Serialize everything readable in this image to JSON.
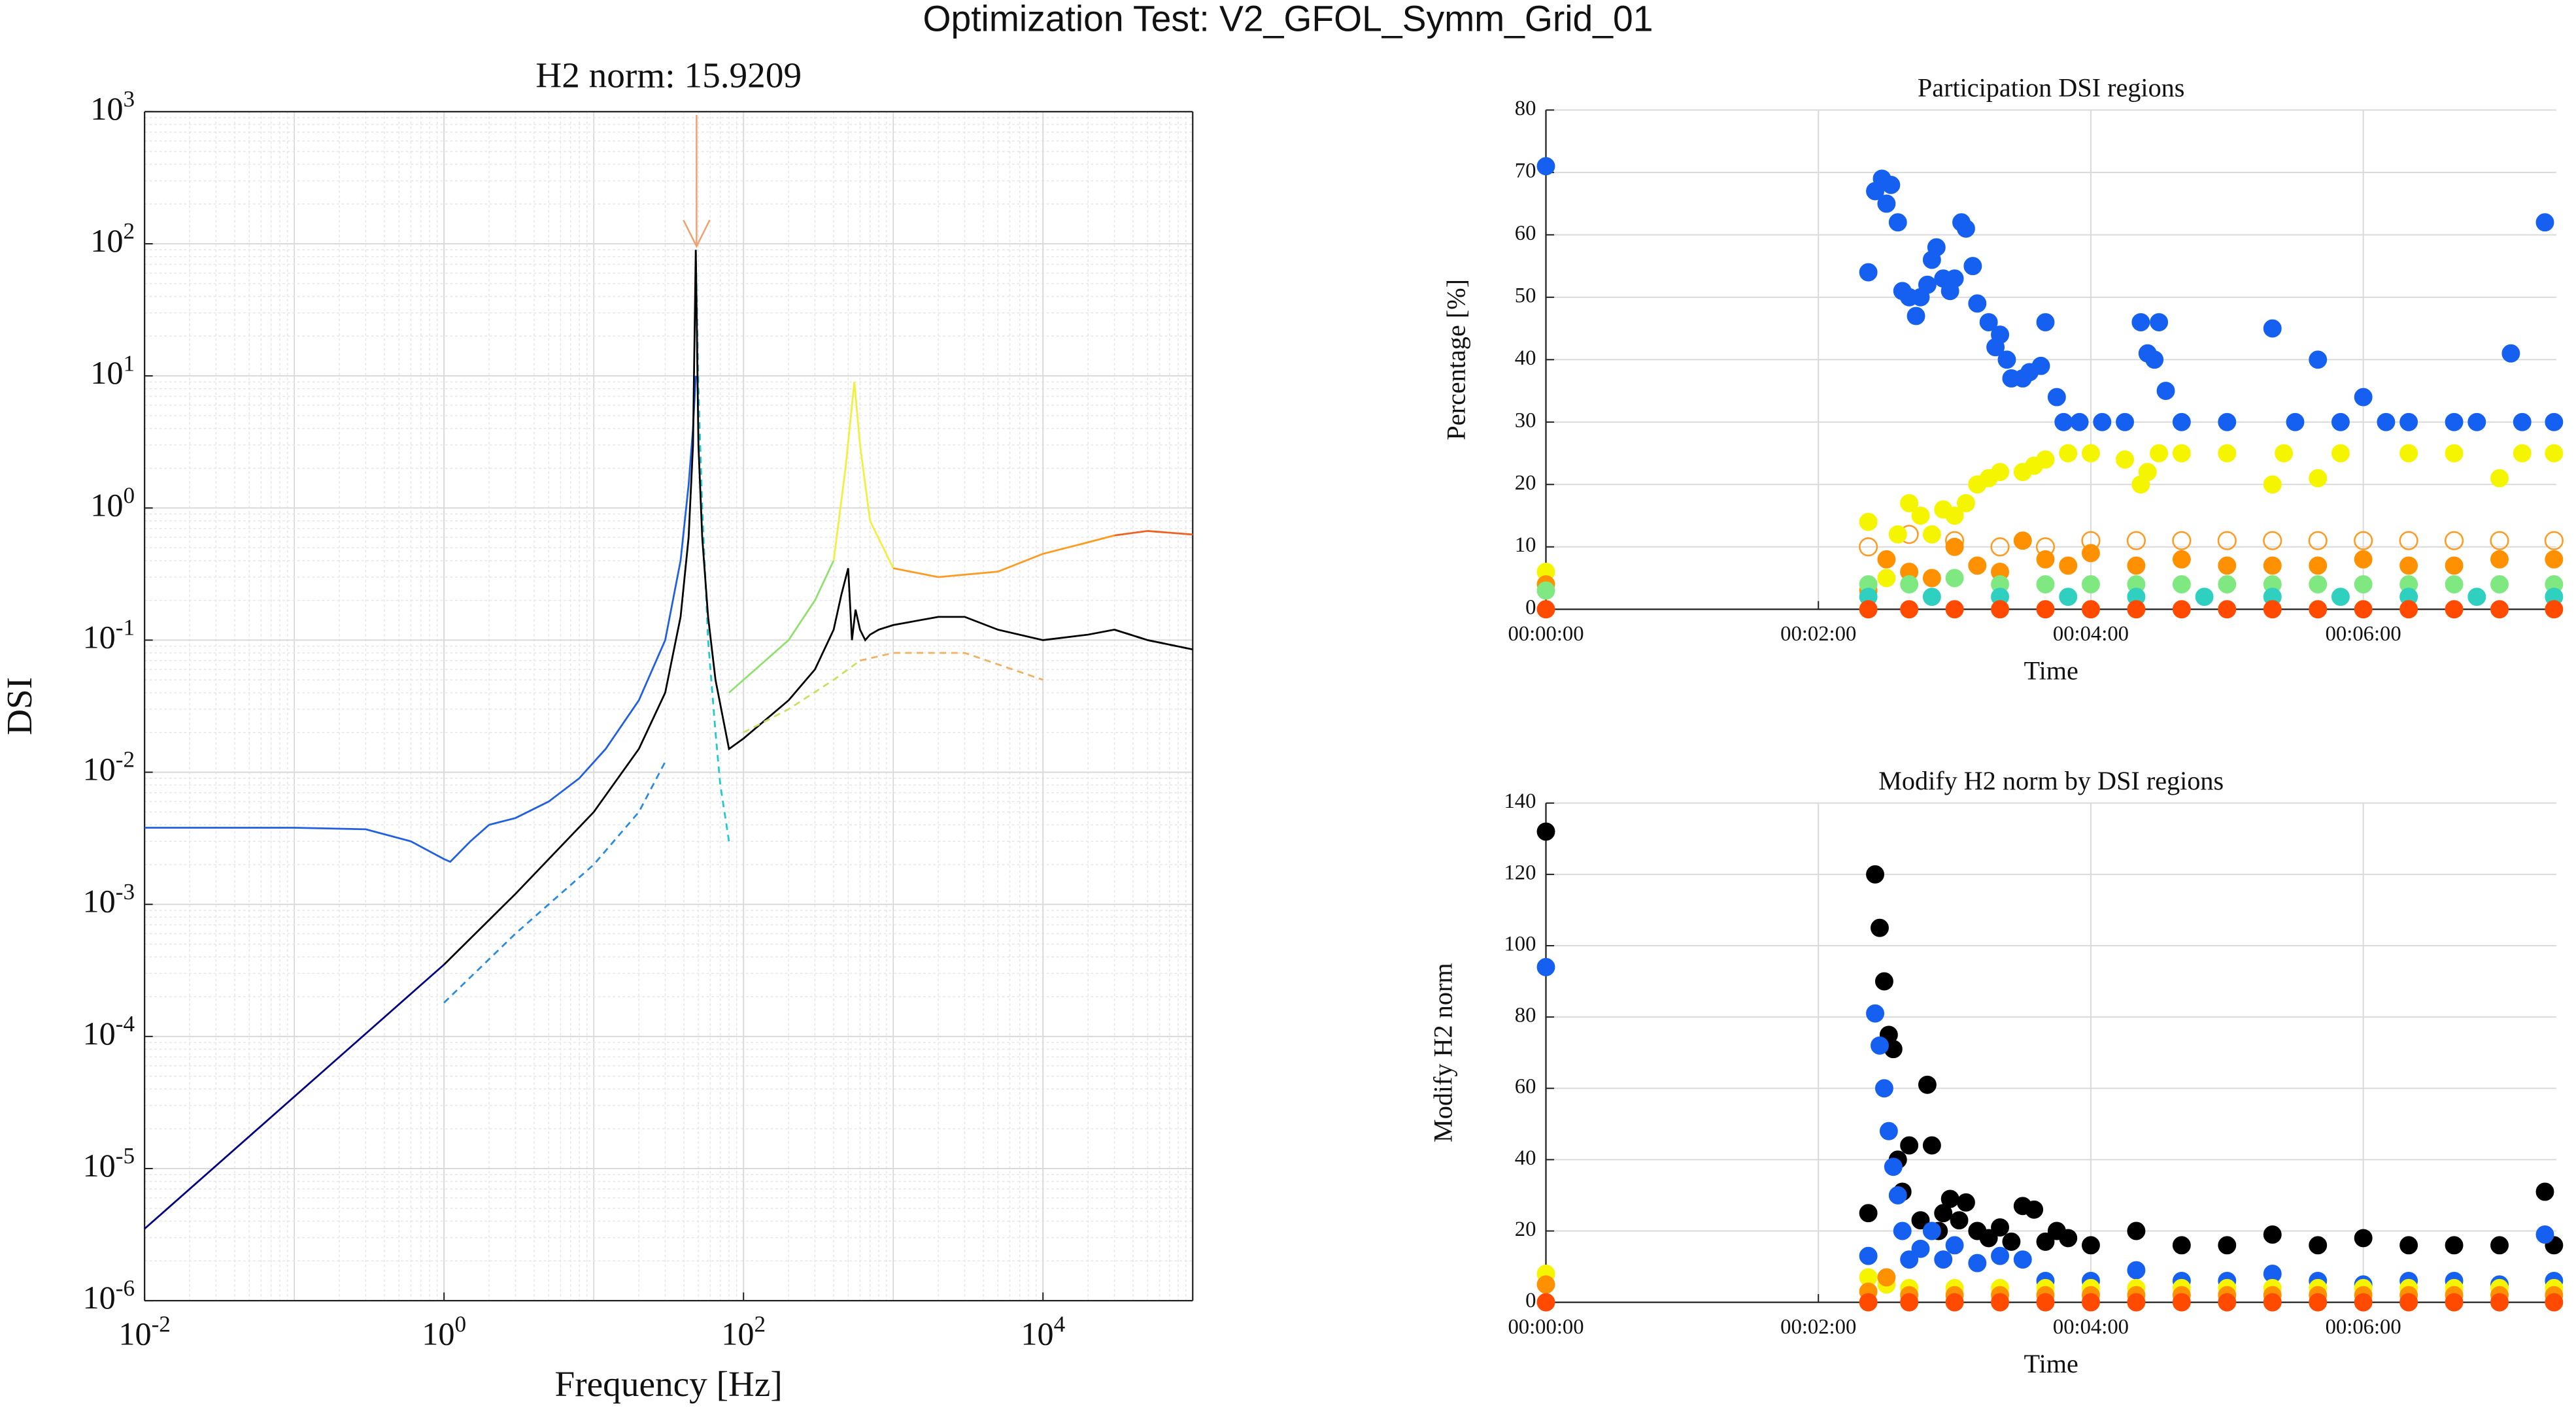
{
  "title": "Optimization Test: V2_GFOL_Symm_Grid_01",
  "chart_data": [
    {
      "type": "line",
      "title": "H2 norm: 15.9209",
      "xlabel": "Frequency [Hz]",
      "ylabel": "DSI",
      "xscale": "log",
      "yscale": "log",
      "grid": true,
      "minor_grid": true,
      "xlim": [
        0.01,
        100000
      ],
      "ylim": [
        1e-06,
        1000
      ],
      "xticks": [
        {
          "value": 0.01,
          "label": "10^-2"
        },
        {
          "value": 1,
          "label": "10^0"
        },
        {
          "value": 100,
          "label": "10^2"
        },
        {
          "value": 10000,
          "label": "10^4"
        }
      ],
      "yticks": [
        {
          "value": 1e-06,
          "label": "10^-6"
        },
        {
          "value": 1e-05,
          "label": "10^-5"
        },
        {
          "value": 0.0001,
          "label": "10^-4"
        },
        {
          "value": 0.001,
          "label": "10^-3"
        },
        {
          "value": 0.01,
          "label": "10^-2"
        },
        {
          "value": 0.1,
          "label": "10^-1"
        },
        {
          "value": 1,
          "label": "10^0"
        },
        {
          "value": 10,
          "label": "10^1"
        },
        {
          "value": 100,
          "label": "10^2"
        },
        {
          "value": 1000,
          "label": "10^3"
        }
      ],
      "series": [
        {
          "color": "#000080",
          "dashed": false,
          "x": [
            0.01,
            1
          ],
          "values": [
            3.5e-06,
            0.00035
          ]
        },
        {
          "color": "#2060e0",
          "dashed": false,
          "x": [
            0.01,
            0.1,
            0.3,
            0.6,
            1,
            1.1,
            1.5,
            2,
            3,
            5,
            8,
            12,
            20,
            30,
            38,
            43,
            46,
            48
          ],
          "values": [
            0.0038,
            0.0038,
            0.0037,
            0.003,
            0.0022,
            0.0021,
            0.003,
            0.004,
            0.0045,
            0.006,
            0.009,
            0.015,
            0.035,
            0.1,
            0.4,
            1.5,
            4,
            10
          ]
        },
        {
          "color": "#2a8ae0",
          "dashed": true,
          "x": [
            1,
            3,
            10,
            20,
            30
          ],
          "values": [
            0.00018,
            0.0006,
            0.002,
            0.005,
            0.012
          ]
        },
        {
          "color": "#20c8d0",
          "dashed": true,
          "x": [
            48,
            50,
            53,
            58,
            65,
            70,
            80
          ],
          "values": [
            90,
            8,
            1,
            0.1,
            0.02,
            0.008,
            0.003
          ]
        },
        {
          "color": "#000000",
          "dashed": false,
          "x": [
            1,
            3,
            10,
            20,
            30,
            38,
            43,
            46,
            48,
            50,
            53,
            58,
            65,
            80,
            100,
            200,
            300,
            400,
            450,
            500,
            530,
            560,
            600,
            650,
            700,
            800,
            1000,
            2000,
            3000,
            5000,
            10000,
            20000,
            30000,
            50000,
            100000
          ],
          "values": [
            0.00035,
            0.0012,
            0.005,
            0.015,
            0.04,
            0.15,
            0.6,
            3,
            90,
            3,
            0.6,
            0.15,
            0.05,
            0.015,
            0.018,
            0.035,
            0.06,
            0.12,
            0.22,
            0.35,
            0.1,
            0.17,
            0.12,
            0.1,
            0.11,
            0.12,
            0.13,
            0.15,
            0.15,
            0.12,
            0.1,
            0.11,
            0.12,
            0.1,
            0.085
          ]
        },
        {
          "color": "#90e070",
          "dashed": false,
          "x": [
            80,
            100,
            200,
            300,
            400
          ],
          "values": [
            0.04,
            0.05,
            0.1,
            0.2,
            0.4
          ]
        },
        {
          "color": "#f0f040",
          "dashed": false,
          "x": [
            400,
            480,
            550,
            600,
            700,
            1000
          ],
          "values": [
            0.4,
            2,
            9,
            3,
            0.8,
            0.35
          ]
        },
        {
          "color": "#ff9a20",
          "dashed": false,
          "x": [
            1000,
            2000,
            5000,
            10000,
            20000,
            30000
          ],
          "values": [
            0.35,
            0.3,
            0.33,
            0.45,
            0.55,
            0.62
          ]
        },
        {
          "color": "#f06020",
          "dashed": false,
          "x": [
            30000,
            50000,
            100000
          ],
          "values": [
            0.62,
            0.67,
            0.63
          ]
        },
        {
          "color": "#c8e060",
          "dashed": true,
          "x": [
            100,
            200,
            400,
            600
          ],
          "values": [
            0.02,
            0.03,
            0.05,
            0.07
          ]
        },
        {
          "color": "#f0b060",
          "dashed": true,
          "x": [
            600,
            1000,
            3000,
            10000
          ],
          "values": [
            0.07,
            0.08,
            0.08,
            0.05
          ]
        },
        {
          "color": "#000000",
          "dashed": true,
          "x": [
            30000,
            50000,
            100000
          ],
          "values": [
            0.12,
            0.1,
            0.085
          ]
        }
      ]
    },
    {
      "type": "scatter",
      "title": "Participation DSI regions",
      "xlabel": "Time",
      "ylabel": "Percentage [%]",
      "grid": true,
      "xlim": [
        0,
        445
      ],
      "ylim": [
        0,
        80
      ],
      "xticks": [
        {
          "value": 0,
          "label": "00:00:00"
        },
        {
          "value": 120,
          "label": "00:02:00"
        },
        {
          "value": 240,
          "label": "00:04:00"
        },
        {
          "value": 360,
          "label": "00:06:00"
        }
      ],
      "yticks": [
        0,
        10,
        20,
        30,
        40,
        50,
        60,
        70,
        80
      ],
      "series": [
        {
          "color": "#ff9a20",
          "filled": false,
          "x": [
            142,
            160,
            180,
            200,
            220,
            240,
            260,
            280,
            300,
            320,
            340,
            360,
            380,
            400,
            420,
            444
          ],
          "values": [
            10,
            12,
            11,
            10,
            10,
            11,
            11,
            11,
            11,
            11,
            11,
            11,
            11,
            11,
            11,
            11
          ]
        },
        {
          "color": "#1560f0",
          "filled": true,
          "x": [
            0,
            142,
            145,
            148,
            150,
            152,
            155,
            157,
            160,
            163,
            165,
            168,
            170,
            172,
            175,
            178,
            180,
            183,
            185,
            188,
            190,
            195,
            198,
            200,
            203,
            205,
            210,
            213,
            218,
            220,
            225,
            228,
            235,
            245,
            255,
            262,
            265,
            268,
            270,
            273,
            280,
            300,
            320,
            330,
            340,
            350,
            360,
            370,
            380,
            400,
            410,
            425,
            430,
            440,
            444
          ],
          "values": [
            71,
            54,
            67,
            69,
            65,
            68,
            62,
            51,
            50,
            47,
            50,
            52,
            56,
            58,
            53,
            51,
            53,
            62,
            61,
            55,
            49,
            46,
            42,
            44,
            40,
            37,
            37,
            38,
            39,
            46,
            34,
            30,
            30,
            30,
            30,
            46,
            41,
            40,
            46,
            35,
            30,
            30,
            45,
            30,
            40,
            30,
            34,
            30,
            30,
            30,
            30,
            41,
            30,
            62,
            30
          ]
        },
        {
          "color": "#f5f500",
          "filled": true,
          "x": [
            0,
            142,
            150,
            155,
            160,
            165,
            170,
            175,
            180,
            185,
            190,
            195,
            200,
            210,
            215,
            220,
            230,
            240,
            255,
            262,
            265,
            270,
            280,
            300,
            320,
            325,
            340,
            350,
            380,
            400,
            420,
            430,
            444
          ],
          "values": [
            6,
            14,
            5,
            12,
            17,
            15,
            12,
            16,
            15,
            17,
            20,
            21,
            22,
            22,
            23,
            24,
            25,
            25,
            24,
            20,
            22,
            25,
            25,
            25,
            20,
            25,
            21,
            25,
            25,
            25,
            21,
            25,
            25
          ]
        },
        {
          "color": "#ff9000",
          "filled": true,
          "x": [
            0,
            142,
            150,
            160,
            170,
            180,
            190,
            200,
            210,
            220,
            230,
            240,
            260,
            280,
            300,
            320,
            340,
            360,
            380,
            400,
            420,
            444
          ],
          "values": [
            4,
            3,
            8,
            6,
            5,
            10,
            7,
            6,
            11,
            8,
            7,
            9,
            7,
            8,
            7,
            7,
            7,
            8,
            7,
            7,
            8,
            8
          ]
        },
        {
          "color": "#80e880",
          "filled": true,
          "x": [
            0,
            142,
            160,
            180,
            200,
            220,
            240,
            260,
            280,
            300,
            320,
            340,
            360,
            380,
            400,
            420,
            444
          ],
          "values": [
            3,
            4,
            4,
            5,
            4,
            4,
            4,
            4,
            4,
            4,
            4,
            4,
            4,
            4,
            4,
            4,
            4
          ]
        },
        {
          "color": "#30d0c0",
          "filled": true,
          "x": [
            142,
            170,
            200,
            230,
            260,
            290,
            320,
            350,
            380,
            410,
            444
          ],
          "values": [
            2,
            2,
            2,
            2,
            2,
            2,
            2,
            2,
            2,
            2,
            2
          ]
        },
        {
          "color": "#ff4a00",
          "filled": true,
          "x": [
            0,
            142,
            160,
            180,
            200,
            220,
            240,
            260,
            280,
            300,
            320,
            340,
            360,
            380,
            400,
            420,
            444
          ],
          "values": [
            0,
            0,
            0,
            0,
            0,
            0,
            0,
            0,
            0,
            0,
            0,
            0,
            0,
            0,
            0,
            0,
            0
          ]
        }
      ]
    },
    {
      "type": "scatter",
      "title": "Modify H2 norm by DSI regions",
      "xlabel": "Time",
      "ylabel": "Modify H2 norm",
      "grid": true,
      "xlim": [
        0,
        445
      ],
      "ylim": [
        0,
        140
      ],
      "xticks": [
        {
          "value": 0,
          "label": "00:00:00"
        },
        {
          "value": 120,
          "label": "00:02:00"
        },
        {
          "value": 240,
          "label": "00:04:00"
        },
        {
          "value": 360,
          "label": "00:06:00"
        }
      ],
      "yticks": [
        0,
        20,
        40,
        60,
        80,
        100,
        120,
        140
      ],
      "series": [
        {
          "color": "#000000",
          "filled": true,
          "x": [
            0,
            142,
            145,
            147,
            149,
            151,
            153,
            155,
            157,
            160,
            165,
            168,
            170,
            173,
            175,
            178,
            182,
            185,
            190,
            195,
            200,
            205,
            210,
            215,
            220,
            225,
            230,
            240,
            260,
            280,
            300,
            320,
            340,
            360,
            380,
            400,
            420,
            440,
            444
          ],
          "values": [
            132,
            25,
            120,
            105,
            90,
            75,
            71,
            40,
            31,
            44,
            23,
            61,
            44,
            20,
            25,
            29,
            23,
            28,
            20,
            18,
            21,
            17,
            27,
            26,
            17,
            20,
            18,
            16,
            20,
            16,
            16,
            19,
            16,
            18,
            16,
            16,
            16,
            31,
            16
          ]
        },
        {
          "color": "#1560f0",
          "filled": true,
          "x": [
            0,
            142,
            145,
            147,
            149,
            151,
            153,
            155,
            157,
            160,
            165,
            170,
            175,
            180,
            190,
            200,
            210,
            220,
            240,
            260,
            280,
            300,
            320,
            340,
            360,
            380,
            400,
            420,
            440,
            444
          ],
          "values": [
            94,
            13,
            81,
            72,
            60,
            48,
            38,
            30,
            20,
            12,
            15,
            20,
            12,
            16,
            11,
            13,
            12,
            6,
            6,
            9,
            6,
            6,
            8,
            6,
            5,
            6,
            6,
            5,
            19,
            6
          ]
        },
        {
          "color": "#f5f500",
          "filled": true,
          "x": [
            0,
            142,
            150,
            160,
            180,
            200,
            220,
            240,
            260,
            280,
            300,
            320,
            340,
            360,
            380,
            400,
            420,
            444
          ],
          "values": [
            8,
            7,
            5,
            4,
            4,
            4,
            4,
            4,
            4,
            4,
            4,
            4,
            4,
            4,
            4,
            4,
            4,
            4
          ]
        },
        {
          "color": "#ff9000",
          "filled": true,
          "x": [
            0,
            142,
            150,
            160,
            180,
            200,
            220,
            240,
            260,
            280,
            300,
            320,
            340,
            360,
            380,
            400,
            420,
            444
          ],
          "values": [
            5,
            3,
            7,
            2,
            2,
            2,
            2,
            2,
            2,
            2,
            2,
            2,
            2,
            2,
            2,
            2,
            2,
            2
          ]
        },
        {
          "color": "#ff4a00",
          "filled": true,
          "x": [
            0,
            142,
            160,
            180,
            200,
            220,
            240,
            260,
            280,
            300,
            320,
            340,
            360,
            380,
            400,
            420,
            444
          ],
          "values": [
            0,
            0,
            0,
            0,
            0,
            0,
            0,
            0,
            0,
            0,
            0,
            0,
            0,
            0,
            0,
            0,
            0
          ]
        }
      ]
    }
  ]
}
